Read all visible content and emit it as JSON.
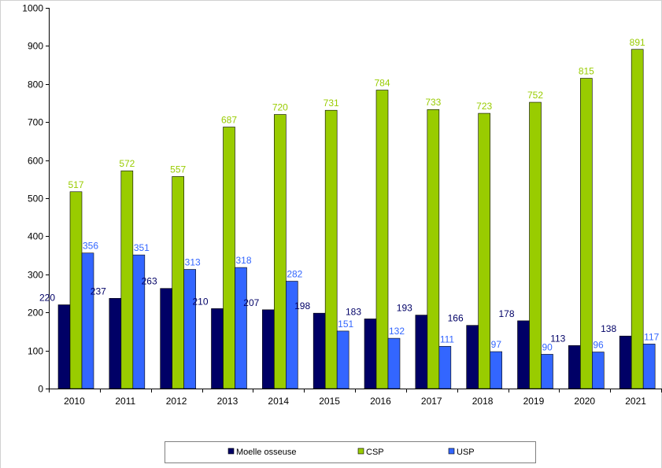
{
  "chart_data": {
    "type": "bar",
    "categories": [
      "2010",
      "2011",
      "2012",
      "2013",
      "2014",
      "2015",
      "2016",
      "2017",
      "2018",
      "2019",
      "2020",
      "2021"
    ],
    "series": [
      {
        "name": "Moelle osseuse",
        "color": "#000066",
        "label_color": "#000066",
        "values": [
          220,
          237,
          263,
          210,
          207,
          198,
          183,
          193,
          166,
          178,
          113,
          138
        ]
      },
      {
        "name": "CSP",
        "color": "#99CC00",
        "label_color": "#99CC00",
        "values": [
          517,
          572,
          557,
          687,
          720,
          731,
          784,
          733,
          723,
          752,
          815,
          891
        ]
      },
      {
        "name": "USP",
        "color": "#3366FF",
        "label_color": "#3366FF",
        "values": [
          356,
          351,
          313,
          318,
          282,
          151,
          132,
          111,
          97,
          90,
          96,
          117
        ]
      }
    ],
    "ylim": [
      0,
      1000
    ],
    "yticks": [
      0,
      100,
      200,
      300,
      400,
      500,
      600,
      700,
      800,
      900,
      1000
    ],
    "title": "",
    "xlabel": "",
    "ylabel": "",
    "grid": false,
    "legend_position": "bottom"
  }
}
